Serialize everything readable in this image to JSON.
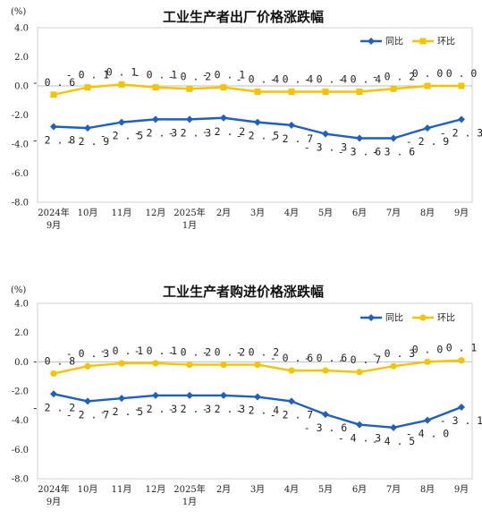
{
  "chart_data": [
    {
      "type": "line",
      "title": "工业生产者出厂价格涨跌幅",
      "unit_label": "(%)",
      "categories": [
        [
          "2024年",
          "9月"
        ],
        [
          "10月"
        ],
        [
          "11月"
        ],
        [
          "12月"
        ],
        [
          "2025年",
          "1月"
        ],
        [
          "2月"
        ],
        [
          "3月"
        ],
        [
          "4月"
        ],
        [
          "5月"
        ],
        [
          "6月"
        ],
        [
          "7月"
        ],
        [
          "8月"
        ],
        [
          "9月"
        ]
      ],
      "y_ticks": [
        "4.0",
        "2.0",
        "0.0",
        "-2.0",
        "-4.0",
        "-6.0",
        "-8.0"
      ],
      "ylim": [
        -8,
        4
      ],
      "legend_position": "top-right",
      "grid": false,
      "series": [
        {
          "name": "同比",
          "color": "#1f5fbf",
          "marker": "diamond",
          "label_position": "below",
          "values": [
            -2.8,
            -2.9,
            -2.5,
            -2.3,
            -2.3,
            -2.2,
            -2.5,
            -2.7,
            -3.3,
            -3.6,
            -3.6,
            -2.9,
            -2.3
          ],
          "labels": [
            "-2.8",
            "-2.9",
            "-2.5",
            "-2.3",
            "-2.3",
            "-2.2",
            "-2.5",
            "-2.7",
            "-3.3",
            "-3.6",
            "-3.6",
            "-2.9",
            "-2.3"
          ]
        },
        {
          "name": "环比",
          "color": "#f5c400",
          "marker": "square",
          "label_position": "above",
          "values": [
            -0.6,
            -0.1,
            0.1,
            -0.1,
            -0.2,
            -0.1,
            -0.4,
            -0.4,
            -0.4,
            -0.4,
            -0.2,
            0.0,
            0.0
          ],
          "labels": [
            "-0.6",
            "-0.1",
            "0.1",
            "-0.1",
            "-0.2",
            "-0.1",
            "-0.4",
            "-0.4",
            "-0.4",
            "-0.4",
            "-0.2",
            "0.0",
            "0.0"
          ]
        }
      ]
    },
    {
      "type": "line",
      "title": "工业生产者购进价格涨跌幅",
      "unit_label": "(%)",
      "categories": [
        [
          "2024年",
          "9月"
        ],
        [
          "10月"
        ],
        [
          "11月"
        ],
        [
          "12月"
        ],
        [
          "2025年",
          "1月"
        ],
        [
          "2月"
        ],
        [
          "3月"
        ],
        [
          "4月"
        ],
        [
          "5月"
        ],
        [
          "6月"
        ],
        [
          "7月"
        ],
        [
          "8月"
        ],
        [
          "9月"
        ]
      ],
      "y_ticks": [
        "4.0",
        "2.0",
        "0.0",
        "-2.0",
        "-4.0",
        "-6.0",
        "-8.0"
      ],
      "ylim": [
        -8,
        4
      ],
      "legend_position": "top-right",
      "grid": false,
      "series": [
        {
          "name": "同比",
          "color": "#1f5fbf",
          "marker": "diamond",
          "label_position": "below",
          "values": [
            -2.2,
            -2.7,
            -2.5,
            -2.3,
            -2.3,
            -2.3,
            -2.4,
            -2.7,
            -3.6,
            -4.3,
            -4.5,
            -4.0,
            -3.1
          ],
          "labels": [
            "-2.2",
            "-2.7",
            "-2.5",
            "-2.3",
            "-2.3",
            "-2.3",
            "-2.4",
            "-2.7",
            "-3.6",
            "-4.3",
            "-4.5",
            "-4.0",
            "-3.1"
          ]
        },
        {
          "name": "环比",
          "color": "#f5c400",
          "marker": "circle",
          "label_position": "above",
          "values": [
            -0.8,
            -0.3,
            -0.1,
            -0.1,
            -0.2,
            -0.2,
            -0.2,
            -0.6,
            -0.6,
            -0.7,
            -0.3,
            0.0,
            0.1
          ],
          "labels": [
            "-0.8",
            "-0.3",
            "-0.1",
            "-0.1",
            "-0.2",
            "-0.2",
            "-0.2",
            "-0.6",
            "-0.6",
            "-0.7",
            "-0.3",
            "0.0",
            "0.1"
          ]
        }
      ]
    }
  ]
}
